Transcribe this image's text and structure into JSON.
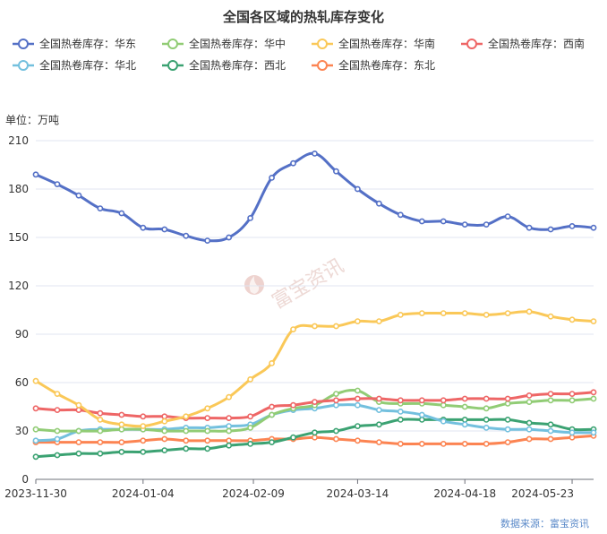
{
  "chart_data": {
    "type": "line",
    "title": "全国各区域的热轧库存变化",
    "unit_label": "单位：万吨",
    "source": "数据来源：富宝资讯",
    "watermark": "富宝资讯",
    "xlabel": "",
    "ylabel": "",
    "ylim": [
      0,
      210
    ],
    "yticks": [
      0,
      30,
      60,
      90,
      120,
      150,
      180,
      210
    ],
    "x_tick_labels": [
      "2023-11-30",
      "2024-01-04",
      "2024-02-09",
      "2024-03-14",
      "2024-04-18",
      "2024-05-23"
    ],
    "x": [
      "2023-11-30",
      "2023-12-07",
      "2023-12-14",
      "2023-12-21",
      "2023-12-28",
      "2024-01-04",
      "2024-01-11",
      "2024-01-18",
      "2024-01-25",
      "2024-02-01",
      "2024-02-08",
      "2024-02-15",
      "2024-02-22",
      "2024-02-29",
      "2024-03-07",
      "2024-03-14",
      "2024-03-21",
      "2024-03-28",
      "2024-04-04",
      "2024-04-11",
      "2024-04-18",
      "2024-04-25",
      "2024-05-02",
      "2024-05-09",
      "2024-05-16",
      "2024-05-23",
      "2024-05-30"
    ],
    "grid": true,
    "legend_position": "top",
    "series": [
      {
        "name": "全国热卷库存：华东",
        "color": "#5470c6",
        "values": [
          189,
          183,
          176,
          168,
          165,
          156,
          155,
          151,
          148,
          150,
          162,
          187,
          196,
          202,
          191,
          180,
          171,
          164,
          160,
          160,
          158,
          158,
          163,
          156,
          155,
          157,
          156
        ]
      },
      {
        "name": "全国热卷库存：华中",
        "color": "#91cc75",
        "values": [
          31,
          30,
          30,
          30,
          31,
          31,
          30,
          30,
          30,
          30,
          32,
          40,
          44,
          46,
          53,
          55,
          48,
          47,
          47,
          46,
          45,
          44,
          47,
          48,
          49,
          49,
          50
        ]
      },
      {
        "name": "全国热卷库存：华南",
        "color": "#fac858",
        "values": [
          61,
          53,
          46,
          37,
          34,
          33,
          36,
          39,
          44,
          51,
          62,
          72,
          93,
          95,
          95,
          98,
          98,
          102,
          103,
          103,
          103,
          102,
          103,
          104,
          101,
          99,
          98
        ]
      },
      {
        "name": "全国热卷库存：西南",
        "color": "#ee6666",
        "values": [
          44,
          43,
          43,
          41,
          40,
          39,
          39,
          38,
          38,
          38,
          39,
          45,
          46,
          48,
          49,
          50,
          50,
          49,
          49,
          49,
          50,
          50,
          50,
          52,
          53,
          53,
          54
        ]
      },
      {
        "name": "全国热卷库存：华北",
        "color": "#73c0de",
        "values": [
          24,
          25,
          30,
          31,
          31,
          31,
          31,
          32,
          32,
          33,
          34,
          40,
          43,
          44,
          46,
          46,
          43,
          42,
          40,
          36,
          34,
          32,
          31,
          31,
          30,
          29,
          29
        ]
      },
      {
        "name": "全国热卷库存：西北",
        "color": "#3ba272",
        "values": [
          14,
          15,
          16,
          16,
          17,
          17,
          18,
          19,
          19,
          21,
          22,
          23,
          26,
          29,
          30,
          33,
          34,
          37,
          37,
          37,
          37,
          37,
          37,
          35,
          34,
          31,
          31
        ]
      },
      {
        "name": "全国热卷库存：东北",
        "color": "#fc8452",
        "values": [
          23,
          23,
          23,
          23,
          23,
          24,
          25,
          24,
          24,
          24,
          24,
          25,
          25,
          26,
          25,
          24,
          23,
          22,
          22,
          22,
          22,
          22,
          23,
          25,
          25,
          26,
          27
        ]
      }
    ]
  }
}
